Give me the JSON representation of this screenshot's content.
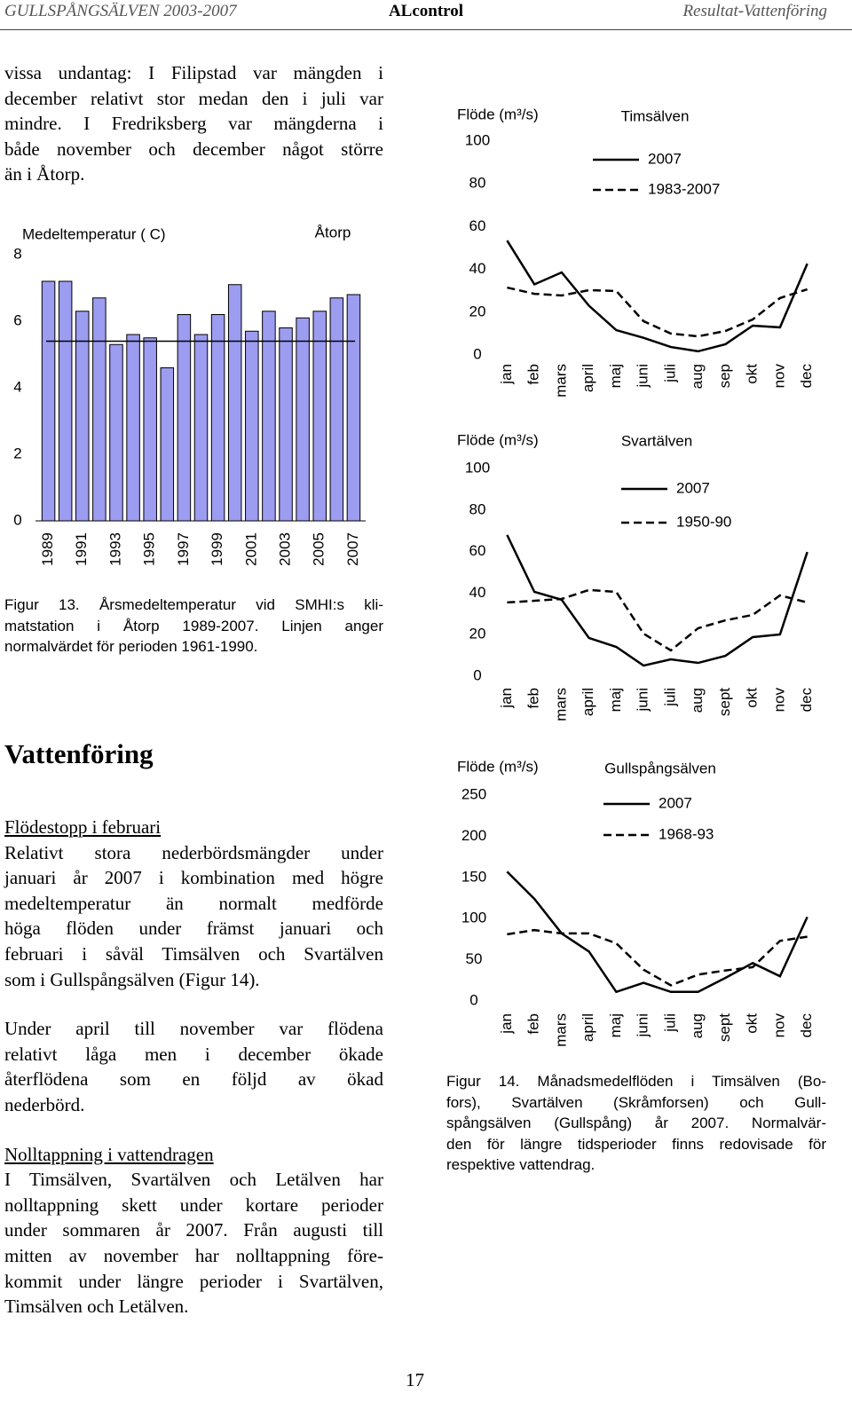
{
  "header": {
    "left": "GULLSPÅNGSÄLVEN 2003-2007",
    "center": "ALcontrol",
    "right": "Resultat-Vattenföring"
  },
  "intro": {
    "lines": [
      "vissa undantag: I Filipstad var mängden i",
      "december relativt stor medan den i juli var",
      "mindre. I Fredriksberg var mängderna i",
      "både november och december något större",
      "än i Åtorp."
    ]
  },
  "chart_data": [
    {
      "type": "bar",
      "title": "Åtorp",
      "y_label": "Medeltemperatur ( C)",
      "categories": [
        "1989",
        null,
        "1991",
        null,
        "1993",
        null,
        "1995",
        null,
        "1997",
        null,
        "1999",
        null,
        "2001",
        null,
        "2003",
        null,
        "2005",
        null,
        "2007"
      ],
      "values": [
        7.2,
        7.2,
        6.3,
        6.7,
        5.3,
        5.6,
        5.5,
        4.6,
        6.2,
        5.6,
        6.2,
        7.1,
        5.7,
        6.3,
        5.8,
        6.1,
        6.3,
        6.7,
        6.8
      ],
      "color": "#9c9cf0",
      "reference_line": 5.4,
      "ylim": [
        0,
        8
      ],
      "yticks": [
        0,
        2,
        4,
        6,
        8
      ]
    },
    {
      "type": "line",
      "title": "Timsälven",
      "y_label": "Flöde (m³/s)",
      "categories": [
        "jan",
        "feb",
        "mars",
        "april",
        "maj",
        "juni",
        "juli",
        "aug",
        "sep",
        "okt",
        "nov",
        "dec"
      ],
      "series": [
        {
          "name": "2007",
          "color": "#000000",
          "line_style": "solid",
          "values": [
            53.5,
            33,
            38.6,
            23,
            11.6,
            8,
            3.7,
            1.7,
            5,
            13.7,
            12.9,
            42.7
          ]
        },
        {
          "name": "1983-2007",
          "color": "#000000",
          "line_style": "dashed",
          "values": [
            31.5,
            28.6,
            27.8,
            30.3,
            29.9,
            15.8,
            10,
            8.7,
            11.2,
            16.6,
            26.6,
            30.7
          ]
        }
      ],
      "ylim": [
        0,
        100
      ],
      "yticks": [
        0,
        20,
        40,
        60,
        80,
        100
      ]
    },
    {
      "type": "line",
      "title": "Svartälven",
      "y_label": "Flöde (m³/s)",
      "categories": [
        "jan",
        "feb",
        "mars",
        "april",
        "maj",
        "juni",
        "juli",
        "aug",
        "sept",
        "okt",
        "nov",
        "dec"
      ],
      "series": [
        {
          "name": "2007",
          "color": "#000000",
          "line_style": "solid",
          "values": [
            68,
            40.6,
            36.8,
            18.4,
            14.1,
            5.1,
            8.1,
            6.4,
            9.8,
            18.8,
            20.1,
            59.8
          ]
        },
        {
          "name": "1950-90",
          "color": "#000000",
          "line_style": "dashed",
          "values": [
            35.5,
            36.3,
            37.2,
            41.5,
            40.6,
            20.5,
            12.4,
            23.1,
            26.9,
            29.5,
            38.9,
            35.5
          ]
        }
      ],
      "ylim": [
        0,
        100
      ],
      "yticks": [
        0,
        20,
        40,
        60,
        80,
        100
      ]
    },
    {
      "type": "line",
      "title": "Gullspångsälven",
      "y_label": "Flöde (m³/s)",
      "categories": [
        "jan",
        "feb",
        "mars",
        "april",
        "maj",
        "juni",
        "juli",
        "aug",
        "sept",
        "okt",
        "nov",
        "dec"
      ],
      "series": [
        {
          "name": "2007",
          "color": "#000000",
          "line_style": "solid",
          "values": [
            157,
            124,
            82,
            60,
            11,
            22,
            11,
            11,
            28,
            46,
            30,
            102
          ]
        },
        {
          "name": "1968-93",
          "color": "#000000",
          "line_style": "dashed",
          "values": [
            81,
            86,
            82,
            82,
            70,
            38,
            19,
            32,
            37,
            41,
            73,
            78
          ]
        }
      ],
      "ylim": [
        0,
        250
      ],
      "yticks": [
        0,
        50,
        100,
        150,
        200,
        250
      ]
    }
  ],
  "figure13_caption": {
    "lines": [
      "Figur 13. Årsmedeltemperatur vid SMHI:s kli-",
      "matstation i Åtorp 1989-2007. Linjen anger",
      "normalvärdet för perioden 1961-1990."
    ]
  },
  "figure14_caption": {
    "lines": [
      "Figur 14. Månadsmedelflöden i Timsälven (Bo-",
      "fors), Svartälven (Skråmforsen) och Gull-",
      "spångsälven (Gullspång) år 2007. Normalvär-",
      "den för längre tidsperioder finns redovisade för",
      "respektive vattendrag."
    ]
  },
  "section": {
    "heading": "Vattenföring",
    "blocks": [
      {
        "subheading": "Flödestopp i februari",
        "lines": [
          "Relativt stora nederbördsmängder under",
          "januari år 2007 i kombination med högre",
          "medeltemperatur än normalt medförde",
          "höga flöden under främst januari och",
          "februari i såväl Timsälven och Svartälven",
          "som i Gullspångsälven (Figur 14)."
        ]
      },
      {
        "lines": [
          "Under april till november var flödena",
          "relativt låga men i december ökade",
          "återflödena som en följd av ökad",
          "nederbörd."
        ]
      },
      {
        "subheading": "Nolltappning i vattendragen",
        "lines": [
          "I Timsälven, Svartälven och Letälven har",
          "nolltappning skett under kortare perioder",
          "under sommaren år 2007. Från augusti till",
          "mitten av november har nolltappning före-",
          "kommit under längre perioder i Svartälven,",
          "Timsälven och Letälven."
        ]
      }
    ]
  },
  "page_number": "17"
}
